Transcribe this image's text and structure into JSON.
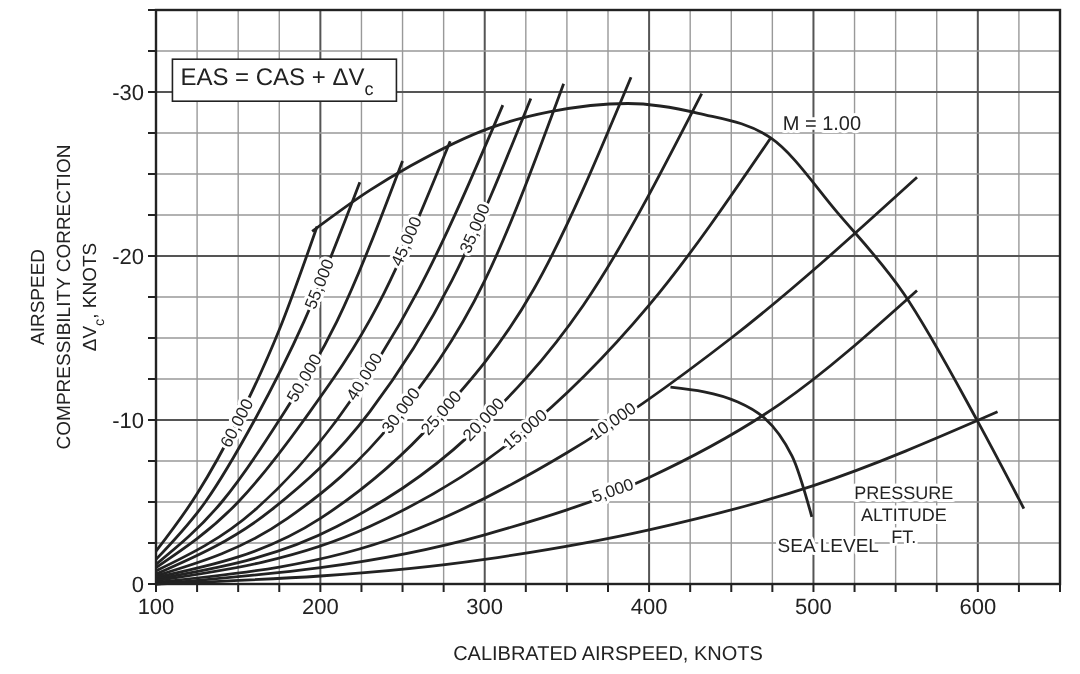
{
  "chart_data": {
    "type": "line",
    "xlabel": "CALIBRATED AIRSPEED, KNOTS",
    "ylabel": "AIRSPEED\nCOMPRESSIBILITY CORRECTION\nΔV$_{c}$, KNOTS",
    "xlim": [
      100,
      650
    ],
    "ylim": [
      0,
      -35
    ],
    "xticks": [
      100,
      {
        "value": 125,
        "label": null
      },
      {
        "value": 150,
        "label": null
      },
      {
        "value": 175,
        "label": null
      },
      200,
      {
        "value": 225,
        "label": null
      },
      {
        "value": 250,
        "label": null
      },
      {
        "value": 275,
        "label": null
      },
      300,
      {
        "value": 325,
        "label": null
      },
      {
        "value": 350,
        "label": null
      },
      {
        "value": 375,
        "label": null
      },
      400,
      {
        "value": 425,
        "label": null
      },
      {
        "value": 450,
        "label": null
      },
      {
        "value": 475,
        "label": null
      },
      500,
      {
        "value": 525,
        "label": null
      },
      {
        "value": 550,
        "label": null
      },
      {
        "value": 575,
        "label": null
      },
      600,
      {
        "value": 625,
        "label": null
      },
      {
        "value": 650,
        "label": null
      }
    ],
    "yticks": [
      0,
      {
        "value": -2.5,
        "label": null
      },
      {
        "value": -5,
        "label": null
      },
      {
        "value": -7.5,
        "label": null
      },
      -10,
      {
        "value": -12.5,
        "label": null
      },
      {
        "value": -15,
        "label": null
      },
      {
        "value": -17.5,
        "label": null
      },
      -20,
      {
        "value": -22.5,
        "label": null
      },
      {
        "value": -25,
        "label": null
      },
      {
        "value": -27.5,
        "label": null
      },
      -30,
      {
        "value": -32.5,
        "label": null
      },
      {
        "value": -35,
        "label": null
      }
    ],
    "grid": true,
    "marker": "none",
    "line_style": "solid",
    "annotations": [
      "EAS = CAS + ΔV$_{c}$",
      "PRESSURE ALTITUDE FT."
    ],
    "series": [
      {
        "name": "M = 1.00",
        "color": "#222222",
        "x": [
          195,
          230,
          255,
          303,
          340,
          387,
          430,
          474,
          515,
          555,
          600,
          628
        ],
        "values": [
          -21.5,
          -24,
          -25.5,
          -27.8,
          -28.8,
          -29.3,
          -28.7,
          -27.2,
          -22.6,
          -17.7,
          -9.9,
          -4.6
        ]
      },
      {
        "name": "60,000",
        "color": "#222222",
        "x": [
          100,
          125,
          150,
          175,
          198
        ],
        "values": [
          -2,
          -5.5,
          -10,
          -15.5,
          -21.8
        ]
      },
      {
        "name": "55,000",
        "color": "#222222",
        "x": [
          100,
          130,
          160,
          190,
          224
        ],
        "values": [
          -1.5,
          -5,
          -10,
          -16,
          -24.5
        ]
      },
      {
        "name": "50,000",
        "color": "#222222",
        "x": [
          100,
          140,
          175,
          210,
          250
        ],
        "values": [
          -1.2,
          -5,
          -10,
          -16,
          -25.8
        ]
      },
      {
        "name": "45,000",
        "color": "#222222",
        "x": [
          100,
          150,
          190,
          235,
          279
        ],
        "values": [
          -1,
          -5,
          -10,
          -17,
          -27
        ]
      },
      {
        "name": "40,000",
        "color": "#222222",
        "x": [
          100,
          160,
          210,
          260,
          311
        ],
        "values": [
          -0.8,
          -4.5,
          -10,
          -18,
          -29.2
        ]
      },
      {
        "name": "35,000",
        "color": "#222222",
        "x": [
          100,
          170,
          230,
          280,
          328
        ],
        "values": [
          -0.6,
          -4.5,
          -10.5,
          -18.5,
          -29.6
        ]
      },
      {
        "name": "30,000",
        "color": "#222222",
        "x": [
          100,
          180,
          245,
          300,
          348
        ],
        "values": [
          -0.5,
          -4,
          -10,
          -18.5,
          -30.5
        ]
      },
      {
        "name": "25,000",
        "color": "#222222",
        "x": [
          100,
          200,
          270,
          330,
          389
        ],
        "values": [
          -0.4,
          -4,
          -10,
          -18,
          -30.9
        ]
      },
      {
        "name": "20,000",
        "color": "#222222",
        "x": [
          100,
          210,
          290,
          360,
          432
        ],
        "values": [
          -0.3,
          -3.5,
          -9,
          -17,
          -29.9
        ]
      },
      {
        "name": "15,000",
        "color": "#222222",
        "x": [
          100,
          230,
          320,
          400,
          474
        ],
        "values": [
          -0.2,
          -3.5,
          -9,
          -17,
          -27.2
        ]
      },
      {
        "name": "10,000",
        "color": "#222222",
        "x": [
          100,
          250,
          350,
          450,
          563
        ],
        "values": [
          -0.1,
          -3,
          -8,
          -15,
          -24.8
        ]
      },
      {
        "name": "5,000",
        "color": "#222222",
        "x": [
          100,
          300,
          400,
          480,
          563
        ],
        "values": [
          0,
          -3,
          -6.5,
          -11,
          -17.9
        ]
      },
      {
        "name": "SEA LEVEL",
        "color": "#222222",
        "x": [
          100,
          300,
          400,
          500,
          612
        ],
        "values": [
          0,
          -1.5,
          -3.3,
          -6,
          -10.5
        ]
      },
      {
        "color": "#222222",
        "x": [
          413,
          454,
          487,
          499
        ],
        "values": [
          -12,
          -11.1,
          -7.8,
          -4.1
        ]
      }
    ]
  }
}
